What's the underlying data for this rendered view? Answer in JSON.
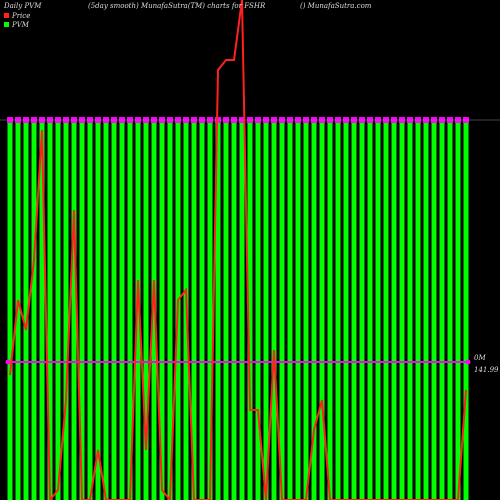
{
  "chart_data": {
    "type": "bar",
    "title": "Daily PVM",
    "subtitle": "(5day smooth) MunafaSutra(TM) charts for FSHR",
    "source": "() MunafaSutra.com",
    "legend": [
      "Price",
      "PVM"
    ],
    "right_labels": [
      "0M",
      "141.99"
    ],
    "reference_value": 27.6,
    "ylim": [
      0,
      100
    ],
    "y2lim": [
      0,
      100
    ],
    "series": [
      {
        "name": "PVM",
        "color": "#00ff00",
        "cap_color": "#ff00ff",
        "values": [
          100,
          100,
          100,
          100,
          100,
          100,
          100,
          100,
          100,
          100,
          100,
          100,
          100,
          100,
          100,
          100,
          100,
          100,
          100,
          100,
          100,
          100,
          100,
          100,
          100,
          100,
          100,
          100,
          100,
          100,
          100,
          100,
          100,
          100,
          100,
          100,
          100,
          100,
          100,
          100,
          100,
          100,
          100,
          100,
          100,
          100,
          100,
          100,
          100,
          100,
          100,
          100,
          100,
          100,
          100,
          100,
          100,
          100
        ]
      },
      {
        "name": "Price",
        "color": "#ff2020",
        "axis": "y2",
        "values": [
          25,
          40,
          34,
          48,
          74,
          0,
          2,
          20,
          58,
          0,
          0,
          10,
          0,
          0,
          0,
          0,
          44,
          10,
          44,
          2,
          0,
          40,
          42,
          0,
          0,
          0,
          86,
          88,
          88,
          100,
          18,
          18,
          0,
          30,
          0,
          0,
          0,
          0,
          14,
          20,
          0,
          0,
          0,
          0,
          0,
          0,
          0,
          0,
          0,
          0,
          0,
          0,
          0,
          0,
          0,
          0,
          0,
          22
        ]
      }
    ],
    "reference_color": "#ff00ff"
  }
}
